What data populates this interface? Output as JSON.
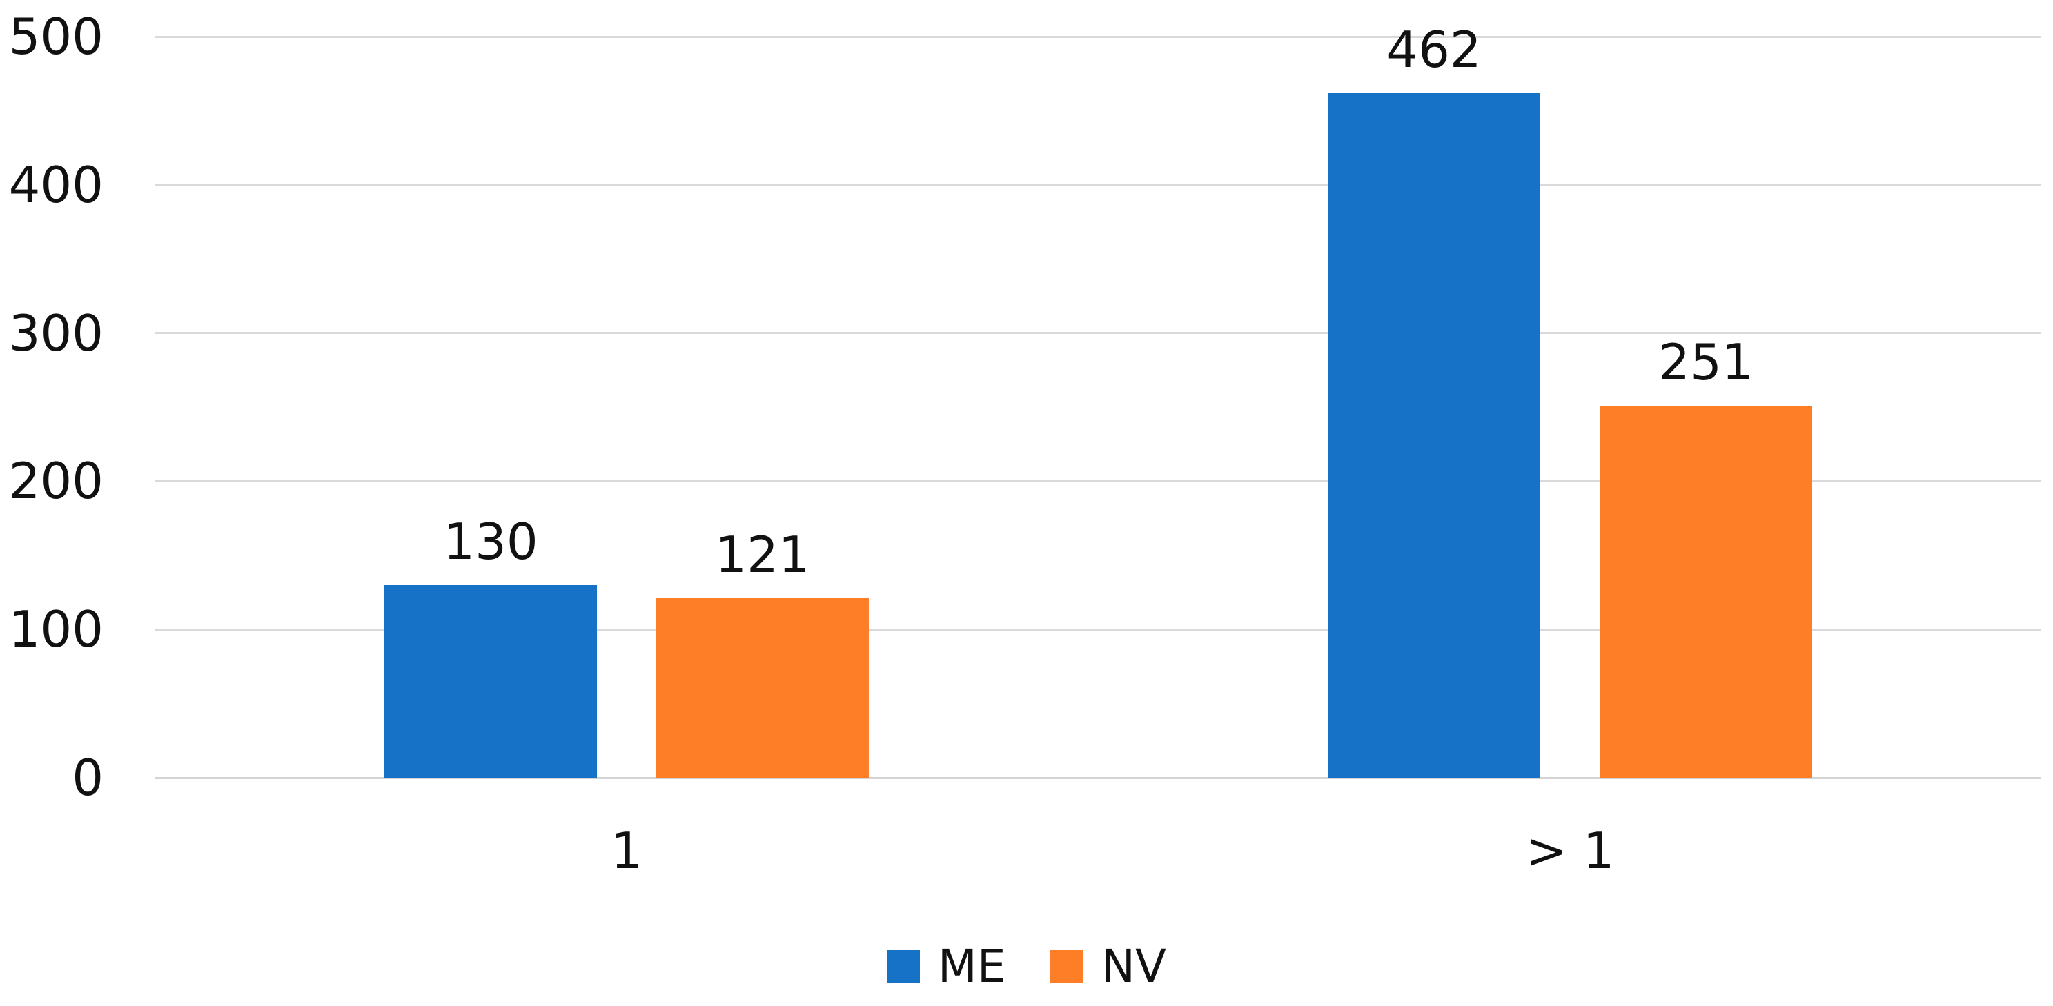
{
  "chart_data": {
    "type": "bar",
    "categories": [
      "1",
      "> 1"
    ],
    "series": [
      {
        "name": "ME",
        "color": "#1572C6",
        "values": [
          130,
          462
        ]
      },
      {
        "name": "NV",
        "color": "#FD7E26",
        "values": [
          121,
          251
        ]
      }
    ],
    "ylim": [
      0,
      500
    ],
    "yticks": [
      0,
      100,
      200,
      300,
      400,
      500
    ],
    "grid": true,
    "legend_position": "bottom",
    "data_labels": true,
    "title": "",
    "xlabel": "",
    "ylabel": ""
  },
  "colors": {
    "gridline": "#D9D9D9",
    "axis_line": "#D4D4D4",
    "text": "#111111",
    "background": "#FFFFFF"
  }
}
